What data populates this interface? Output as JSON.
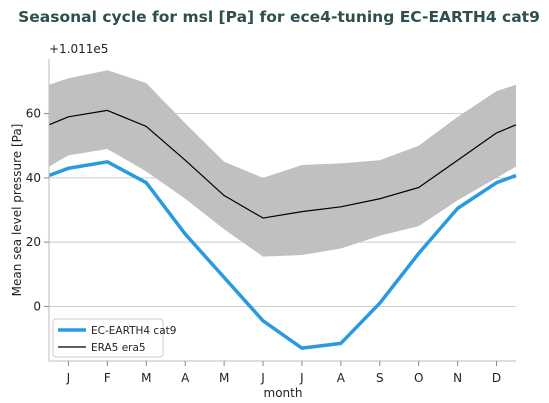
{
  "chart_data": {
    "type": "line",
    "title": "Seasonal cycle for msl [Pa] for ece4-tuning EC-EARTH4 cat9",
    "xlabel": "month",
    "ylabel": "Mean sea level pressure [Pa]",
    "offset_label": "+1.011e5",
    "categories": [
      "J",
      "F",
      "M",
      "A",
      "M",
      "J",
      "J",
      "A",
      "S",
      "O",
      "N",
      "D"
    ],
    "ylim": [
      -17,
      77
    ],
    "yticks": [
      0,
      20,
      40,
      60
    ],
    "grid": true,
    "legend_position": "lower-left",
    "series": [
      {
        "name": "EC-EARTH4 cat9",
        "color": "#2a9ae0",
        "values": [
          43,
          45,
          38.5,
          22.5,
          9,
          -4.5,
          -13,
          -11.5,
          1,
          16.5,
          30.5,
          38.5
        ]
      },
      {
        "name": "ERA5 era5",
        "color": "#000000",
        "values": [
          59,
          61,
          56,
          45.5,
          34.5,
          27.5,
          29.5,
          31,
          33.5,
          37,
          45.5,
          54
        ]
      }
    ],
    "band": {
      "color": "#c0c0c0",
      "lower": [
        47,
        49,
        42,
        33.5,
        24,
        15.5,
        16,
        18,
        22,
        25,
        33,
        40
      ],
      "upper": [
        71,
        73.5,
        69.5,
        57,
        45,
        40,
        44,
        44.5,
        45.5,
        50,
        59,
        67
      ]
    }
  }
}
